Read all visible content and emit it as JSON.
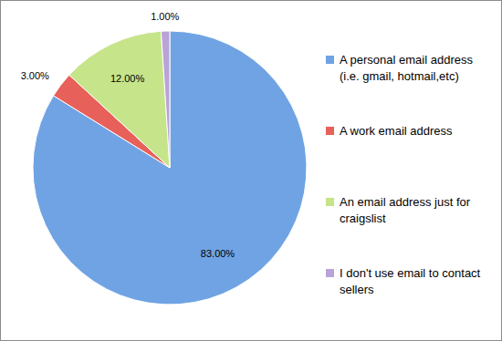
{
  "chart_data": {
    "type": "pie",
    "categories": [
      "A personal email address (i.e. gmail, hotmail,etc)",
      "A work email address",
      "An email address just for craigslist",
      "I don't use email to contact sellers"
    ],
    "values": [
      83,
      3,
      12,
      1
    ],
    "value_labels": [
      "83.00%",
      "3.00%",
      "12.00%",
      "1.00%"
    ],
    "colors": [
      "#6fa3e3",
      "#e8605a",
      "#c6e48a",
      "#b9a3d8"
    ],
    "data_labels": true,
    "legend": "right"
  }
}
